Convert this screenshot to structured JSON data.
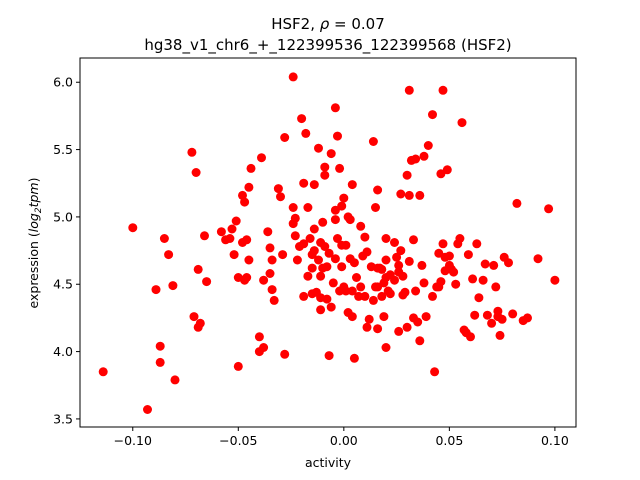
{
  "chart_data": {
    "type": "scatter",
    "title_line1_prefix": "HSF2, ",
    "title_line1_rho": "ρ",
    "title_line1_suffix": " = 0.07",
    "title_line2": "hg38_v1_chr6_+_122399536_122399568 (HSF2)",
    "xlabel": "activity",
    "ylabel_prefix": "expression (",
    "ylabel_italic": "log",
    "ylabel_sub": "2",
    "ylabel_italic2": "tpm",
    "ylabel_suffix": ")",
    "xlim": [
      -0.125,
      0.11
    ],
    "ylim": [
      3.44,
      6.18
    ],
    "xticks": [
      -0.1,
      -0.05,
      0.0,
      0.05,
      0.1
    ],
    "xtick_labels": [
      "−0.10",
      "−0.05",
      "0.00",
      "0.05",
      "0.10"
    ],
    "yticks": [
      3.5,
      4.0,
      4.5,
      5.0,
      5.5,
      6.0
    ],
    "ytick_labels": [
      "3.5",
      "4.0",
      "4.5",
      "5.0",
      "5.5",
      "6.0"
    ],
    "marker_color": "#ff0000",
    "grid": false,
    "points": [
      [
        -0.114,
        3.85
      ],
      [
        -0.1,
        4.92
      ],
      [
        -0.093,
        3.57
      ],
      [
        -0.089,
        4.46
      ],
      [
        -0.087,
        3.92
      ],
      [
        -0.087,
        4.04
      ],
      [
        -0.085,
        4.84
      ],
      [
        -0.083,
        4.72
      ],
      [
        -0.081,
        4.49
      ],
      [
        -0.08,
        3.79
      ],
      [
        -0.072,
        5.48
      ],
      [
        -0.071,
        4.26
      ],
      [
        -0.07,
        5.33
      ],
      [
        -0.069,
        4.61
      ],
      [
        -0.069,
        4.18
      ],
      [
        -0.068,
        4.21
      ],
      [
        -0.066,
        4.86
      ],
      [
        -0.065,
        4.52
      ],
      [
        -0.058,
        4.89
      ],
      [
        -0.056,
        4.83
      ],
      [
        -0.054,
        4.84
      ],
      [
        -0.053,
        4.91
      ],
      [
        -0.052,
        4.72
      ],
      [
        -0.051,
        4.97
      ],
      [
        -0.05,
        4.55
      ],
      [
        -0.05,
        3.89
      ],
      [
        -0.048,
        4.81
      ],
      [
        -0.048,
        5.16
      ],
      [
        -0.047,
        4.53
      ],
      [
        -0.047,
        5.11
      ],
      [
        -0.046,
        4.83
      ],
      [
        -0.046,
        4.55
      ],
      [
        -0.045,
        4.68
      ],
      [
        -0.045,
        5.22
      ],
      [
        -0.044,
        5.36
      ],
      [
        -0.04,
        4.0
      ],
      [
        -0.04,
        4.11
      ],
      [
        -0.039,
        5.44
      ],
      [
        -0.038,
        4.53
      ],
      [
        -0.038,
        4.03
      ],
      [
        -0.036,
        4.89
      ],
      [
        -0.035,
        4.77
      ],
      [
        -0.035,
        4.58
      ],
      [
        -0.034,
        4.46
      ],
      [
        -0.034,
        4.68
      ],
      [
        -0.033,
        4.38
      ],
      [
        -0.031,
        5.21
      ],
      [
        -0.03,
        5.15
      ],
      [
        -0.029,
        4.72
      ],
      [
        -0.028,
        5.59
      ],
      [
        -0.028,
        3.98
      ],
      [
        -0.024,
        6.04
      ],
      [
        -0.024,
        5.07
      ],
      [
        -0.024,
        4.95
      ],
      [
        -0.023,
        4.99
      ],
      [
        -0.023,
        4.86
      ],
      [
        -0.022,
        4.68
      ],
      [
        -0.021,
        4.78
      ],
      [
        -0.02,
        5.73
      ],
      [
        -0.019,
        5.25
      ],
      [
        -0.019,
        4.41
      ],
      [
        -0.019,
        4.8
      ],
      [
        -0.018,
        5.62
      ],
      [
        -0.017,
        5.07
      ],
      [
        -0.017,
        4.56
      ],
      [
        -0.016,
        4.84
      ],
      [
        -0.015,
        4.72
      ],
      [
        -0.015,
        4.62
      ],
      [
        -0.015,
        4.43
      ],
      [
        -0.014,
        4.91
      ],
      [
        -0.014,
        4.75
      ],
      [
        -0.014,
        5.24
      ],
      [
        -0.013,
        4.44
      ],
      [
        -0.012,
        4.68
      ],
      [
        -0.012,
        5.51
      ],
      [
        -0.011,
        4.4
      ],
      [
        -0.011,
        4.31
      ],
      [
        -0.011,
        4.56
      ],
      [
        -0.011,
        4.81
      ],
      [
        -0.01,
        4.62
      ],
      [
        -0.01,
        4.96
      ],
      [
        -0.009,
        5.37
      ],
      [
        -0.009,
        5.31
      ],
      [
        -0.009,
        4.78
      ],
      [
        -0.008,
        4.39
      ],
      [
        -0.008,
        4.63
      ],
      [
        -0.007,
        4.73
      ],
      [
        -0.007,
        3.97
      ],
      [
        -0.006,
        4.33
      ],
      [
        -0.006,
        5.47
      ],
      [
        -0.005,
        4.51
      ],
      [
        -0.004,
        5.81
      ],
      [
        -0.004,
        4.98
      ],
      [
        -0.004,
        5.05
      ],
      [
        -0.004,
        4.69
      ],
      [
        -0.003,
        5.6
      ],
      [
        -0.003,
        4.84
      ],
      [
        -0.002,
        4.45
      ],
      [
        -0.002,
        5.36
      ],
      [
        -0.001,
        4.79
      ],
      [
        -0.001,
        5.08
      ],
      [
        -0.001,
        4.63
      ],
      [
        0.0,
        4.48
      ],
      [
        0.0,
        5.14
      ],
      [
        0.001,
        4.45
      ],
      [
        0.001,
        4.79
      ],
      [
        0.002,
        5.0
      ],
      [
        0.002,
        4.29
      ],
      [
        0.003,
        4.69
      ],
      [
        0.003,
        4.98
      ],
      [
        0.004,
        4.26
      ],
      [
        0.004,
        4.45
      ],
      [
        0.004,
        5.24
      ],
      [
        0.005,
        3.95
      ],
      [
        0.005,
        4.66
      ],
      [
        0.006,
        4.55
      ],
      [
        0.007,
        4.41
      ],
      [
        0.008,
        4.93
      ],
      [
        0.008,
        4.48
      ],
      [
        0.009,
        4.71
      ],
      [
        0.01,
        4.85
      ],
      [
        0.01,
        4.41
      ],
      [
        0.011,
        4.74
      ],
      [
        0.011,
        4.18
      ],
      [
        0.012,
        4.24
      ],
      [
        0.013,
        4.63
      ],
      [
        0.014,
        5.56
      ],
      [
        0.014,
        4.38
      ],
      [
        0.015,
        5.07
      ],
      [
        0.015,
        4.48
      ],
      [
        0.016,
        4.17
      ],
      [
        0.016,
        4.48
      ],
      [
        0.016,
        4.62
      ],
      [
        0.016,
        5.2
      ],
      [
        0.017,
        4.62
      ],
      [
        0.018,
        4.61
      ],
      [
        0.018,
        4.41
      ],
      [
        0.019,
        4.26
      ],
      [
        0.019,
        4.51
      ],
      [
        0.02,
        4.84
      ],
      [
        0.02,
        4.55
      ],
      [
        0.02,
        4.03
      ],
      [
        0.02,
        4.68
      ],
      [
        0.021,
        4.45
      ],
      [
        0.022,
        4.43
      ],
      [
        0.022,
        4.57
      ],
      [
        0.024,
        4.53
      ],
      [
        0.024,
        4.81
      ],
      [
        0.025,
        4.7
      ],
      [
        0.026,
        4.59
      ],
      [
        0.026,
        4.64
      ],
      [
        0.026,
        4.15
      ],
      [
        0.027,
        5.17
      ],
      [
        0.027,
        4.75
      ],
      [
        0.028,
        4.42
      ],
      [
        0.028,
        4.56
      ],
      [
        0.029,
        4.44
      ],
      [
        0.03,
        4.18
      ],
      [
        0.03,
        5.31
      ],
      [
        0.031,
        5.94
      ],
      [
        0.031,
        4.67
      ],
      [
        0.031,
        5.16
      ],
      [
        0.032,
        5.42
      ],
      [
        0.033,
        4.83
      ],
      [
        0.033,
        4.25
      ],
      [
        0.034,
        4.45
      ],
      [
        0.034,
        5.43
      ],
      [
        0.035,
        4.22
      ],
      [
        0.036,
        5.16
      ],
      [
        0.036,
        4.08
      ],
      [
        0.037,
        4.64
      ],
      [
        0.038,
        5.45
      ],
      [
        0.038,
        4.51
      ],
      [
        0.039,
        4.26
      ],
      [
        0.04,
        5.53
      ],
      [
        0.042,
        5.76
      ],
      [
        0.042,
        4.41
      ],
      [
        0.043,
        3.85
      ],
      [
        0.044,
        4.48
      ],
      [
        0.045,
        4.48
      ],
      [
        0.045,
        4.73
      ],
      [
        0.046,
        4.52
      ],
      [
        0.046,
        5.32
      ],
      [
        0.047,
        5.94
      ],
      [
        0.047,
        4.8
      ],
      [
        0.048,
        4.6
      ],
      [
        0.048,
        4.7
      ],
      [
        0.049,
        5.35
      ],
      [
        0.05,
        4.64
      ],
      [
        0.05,
        4.71
      ],
      [
        0.051,
        4.61
      ],
      [
        0.052,
        4.59
      ],
      [
        0.053,
        4.5
      ],
      [
        0.054,
        4.8
      ],
      [
        0.055,
        4.84
      ],
      [
        0.056,
        5.7
      ],
      [
        0.057,
        4.16
      ],
      [
        0.058,
        4.14
      ],
      [
        0.059,
        4.72
      ],
      [
        0.06,
        4.11
      ],
      [
        0.061,
        4.54
      ],
      [
        0.062,
        4.27
      ],
      [
        0.063,
        4.8
      ],
      [
        0.064,
        4.4
      ],
      [
        0.066,
        4.53
      ],
      [
        0.067,
        4.65
      ],
      [
        0.068,
        4.27
      ],
      [
        0.07,
        4.21
      ],
      [
        0.071,
        4.64
      ],
      [
        0.072,
        4.48
      ],
      [
        0.073,
        4.3
      ],
      [
        0.073,
        4.26
      ],
      [
        0.074,
        4.12
      ],
      [
        0.075,
        4.24
      ],
      [
        0.076,
        4.7
      ],
      [
        0.078,
        4.66
      ],
      [
        0.08,
        4.28
      ],
      [
        0.082,
        5.1
      ],
      [
        0.085,
        4.23
      ],
      [
        0.087,
        4.25
      ],
      [
        0.092,
        4.69
      ],
      [
        0.097,
        5.06
      ],
      [
        0.1,
        4.53
      ]
    ]
  }
}
